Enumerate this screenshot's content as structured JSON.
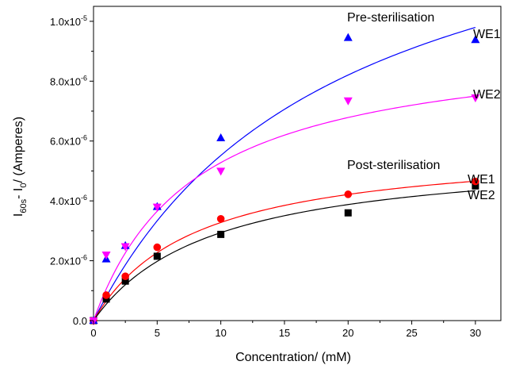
{
  "chart_data": {
    "type": "scatter",
    "title": "",
    "xlabel": "Concentration/ (mM)",
    "ylabel": {
      "prefix": "I",
      "sub1": "60s",
      "mid": "- I",
      "sub2": "0",
      "suffix": "/ (Amperes)"
    },
    "xlim": [
      0,
      32
    ],
    "ylim": [
      0,
      1.05e-05
    ],
    "x_ticks": [
      0,
      5,
      10,
      15,
      20,
      25,
      30
    ],
    "x_tick_labels": [
      "0",
      "5",
      "10",
      "15",
      "20",
      "25",
      "30"
    ],
    "y_ticks": [
      0,
      2e-06,
      4e-06,
      6e-06,
      8e-06,
      1e-05
    ],
    "y_tick_labels": [
      {
        "base": "0.0",
        "exp": ""
      },
      {
        "base": "2.0x10",
        "exp": "-6"
      },
      {
        "base": "4.0x10",
        "exp": "-6"
      },
      {
        "base": "6.0x10",
        "exp": "-6"
      },
      {
        "base": "8.0x10",
        "exp": "-6"
      },
      {
        "base": "1.0x10",
        "exp": "-5"
      }
    ],
    "grid": false,
    "annotations": {
      "pre": "Pre-sterilisation",
      "post": "Post-sterilisation",
      "pre_we1": "WE1",
      "pre_we2": "WE2",
      "post_we1": "WE1",
      "post_we2": "WE2"
    },
    "series": [
      {
        "key": "pre_we1",
        "marker": "triangle-up",
        "color": "#0000ff",
        "x": [
          0,
          1,
          2.5,
          5,
          10,
          20,
          30
        ],
        "y": [
          0,
          2.05e-06,
          2.5e-06,
          3.8e-06,
          6.1e-06,
          9.45e-06,
          9.38e-06
        ],
        "fit": {
          "vmax": 1.6e-05,
          "km": 19.0
        }
      },
      {
        "key": "pre_we2",
        "marker": "triangle-down",
        "color": "#ff00ff",
        "x": [
          0,
          1,
          2.5,
          5,
          10,
          20,
          30
        ],
        "y": [
          0,
          2.2e-06,
          2.48e-06,
          3.8e-06,
          5e-06,
          7.35e-06,
          7.45e-06
        ],
        "fit": {
          "vmax": 9.5e-06,
          "km": 8.0
        }
      },
      {
        "key": "post_we1",
        "marker": "circle",
        "color": "#ff0000",
        "x": [
          0,
          1,
          2.5,
          5,
          10,
          20,
          30
        ],
        "y": [
          0,
          8.5e-07,
          1.48e-06,
          2.45e-06,
          3.4e-06,
          4.22e-06,
          4.65e-06
        ],
        "fit": {
          "vmax": 5.9e-06,
          "km": 8.0
        }
      },
      {
        "key": "post_we2",
        "marker": "square",
        "color": "#000000",
        "x": [
          0,
          1,
          2.5,
          5,
          10,
          20,
          30
        ],
        "y": [
          0,
          7.2e-07,
          1.32e-06,
          2.15e-06,
          2.88e-06,
          3.6e-06,
          4.5e-06
        ],
        "fit": {
          "vmax": 5.7e-06,
          "km": 9.4
        }
      }
    ]
  }
}
